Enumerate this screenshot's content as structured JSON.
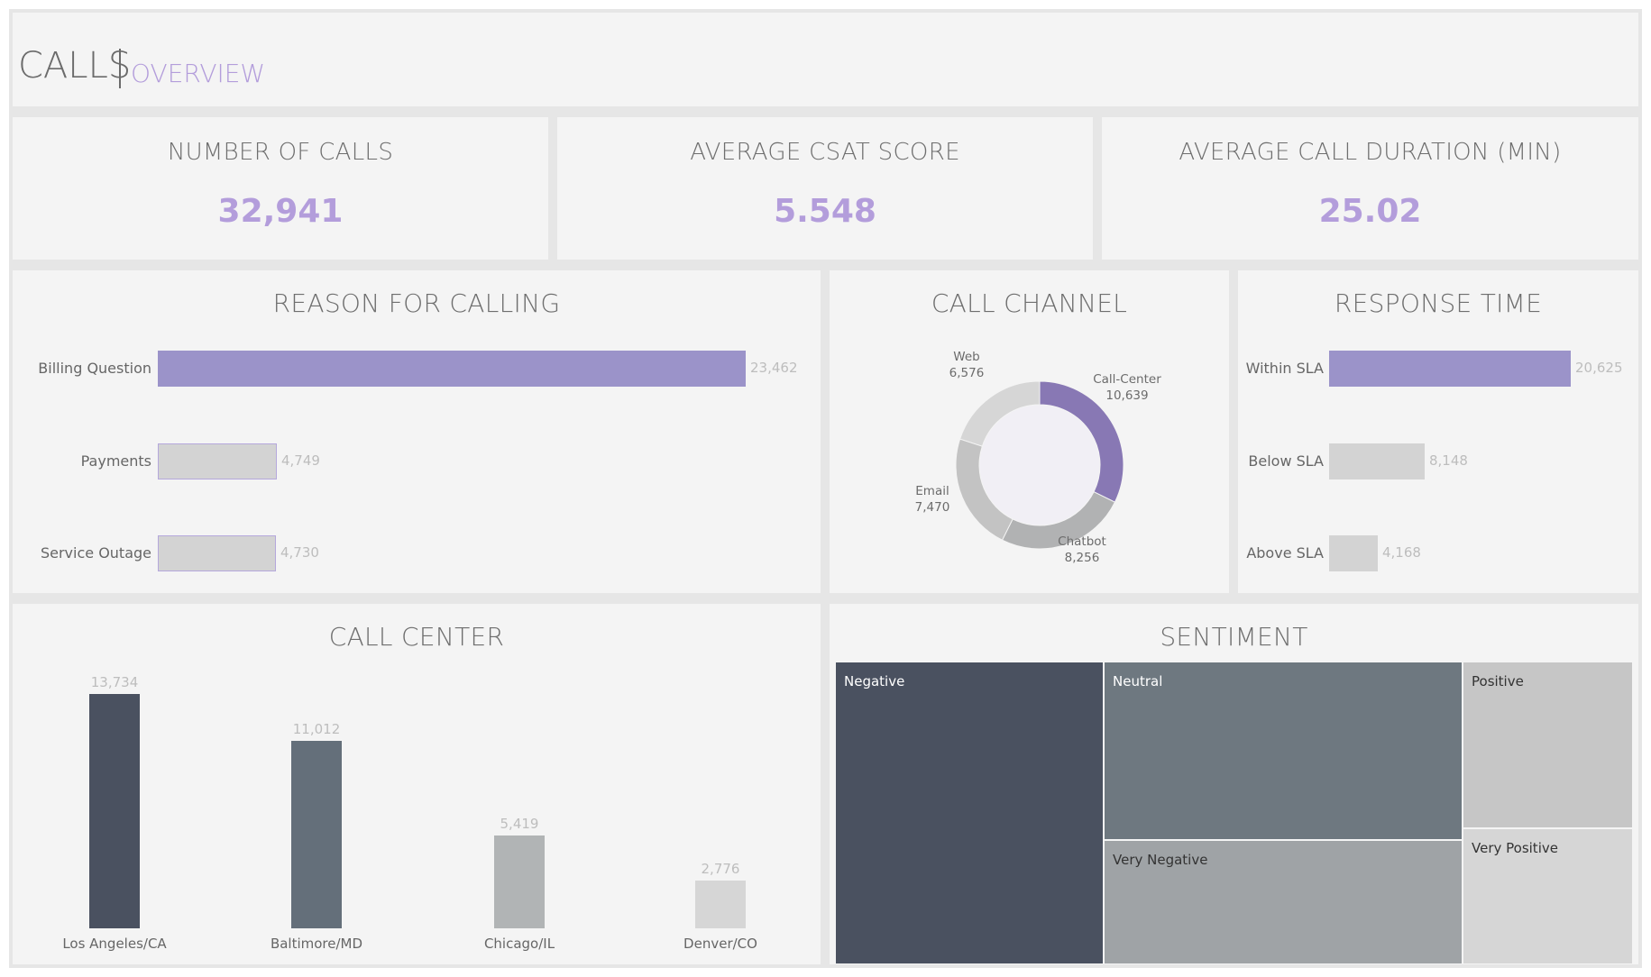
{
  "header": {
    "title": "CALLS",
    "subtitle": "OVERVIEW"
  },
  "kpis": [
    {
      "label": "NUMBER OF CALLS",
      "value": "32,941"
    },
    {
      "label": "AVERAGE CSAT SCORE",
      "value": "5.548"
    },
    {
      "label": "AVERAGE CALL DURATION (MIN)",
      "value": "25.02"
    }
  ],
  "colors": {
    "accent": "#9b93c9",
    "accent_text": "#b39ddb",
    "muted_bar": "#d3d3d3",
    "panel": "#f4f4f4",
    "dark1": "#4a5160",
    "dark2": "#646f7a",
    "grey": "#b1b4b5",
    "light": "#d6d6d6"
  },
  "chart_data": [
    {
      "id": "reason",
      "type": "bar",
      "orientation": "horizontal",
      "title": "REASON FOR CALLING",
      "categories": [
        "Billing Question",
        "Payments",
        "Service Outage"
      ],
      "values": [
        23462,
        4749,
        4730
      ],
      "value_labels": [
        "23,462",
        "4,749",
        "4,730"
      ],
      "xlim": [
        0,
        23462
      ],
      "highlight": [
        true,
        false,
        false
      ]
    },
    {
      "id": "channel",
      "type": "pie",
      "donut": true,
      "title": "CALL CHANNEL",
      "categories": [
        "Call-Center",
        "Chatbot",
        "Email",
        "Web"
      ],
      "values": [
        10639,
        8256,
        7470,
        6576
      ],
      "value_labels": [
        "10,639",
        "8,256",
        "7,470",
        "6,576"
      ],
      "slice_colors": [
        "#8878b4",
        "#b1b2b3",
        "#c3c3c3",
        "#d6d6d6"
      ]
    },
    {
      "id": "response",
      "type": "bar",
      "orientation": "horizontal",
      "title": "RESPONSE TIME",
      "categories": [
        "Within SLA",
        "Below SLA",
        "Above SLA"
      ],
      "values": [
        20625,
        8148,
        4168
      ],
      "value_labels": [
        "20,625",
        "8,148",
        "4,168"
      ],
      "xlim": [
        0,
        20625
      ],
      "highlight": [
        true,
        false,
        false
      ]
    },
    {
      "id": "callcenter",
      "type": "bar",
      "orientation": "vertical",
      "title": "CALL CENTER",
      "categories": [
        "Los Angeles/CA",
        "Baltimore/MD",
        "Chicago/IL",
        "Denver/CO"
      ],
      "values": [
        13734,
        11012,
        5419,
        2776
      ],
      "value_labels": [
        "13,734",
        "11,012",
        "5,419",
        "2,776"
      ],
      "ylim": [
        0,
        13734
      ],
      "bar_colors": [
        "#4a5160",
        "#646f7a",
        "#b1b4b5",
        "#d6d6d6"
      ]
    },
    {
      "id": "sentiment",
      "type": "treemap",
      "title": "SENTIMENT",
      "categories": [
        "Negative",
        "Neutral",
        "Very Negative",
        "Positive",
        "Very Positive"
      ],
      "cell_colors": [
        "#4a5160",
        "#6e7880",
        "#9fa3a6",
        "#c6c6c6",
        "#d6d6d6"
      ],
      "label_colors": [
        "#ffffff",
        "#ffffff",
        "#333333",
        "#333333",
        "#333333"
      ]
    }
  ]
}
